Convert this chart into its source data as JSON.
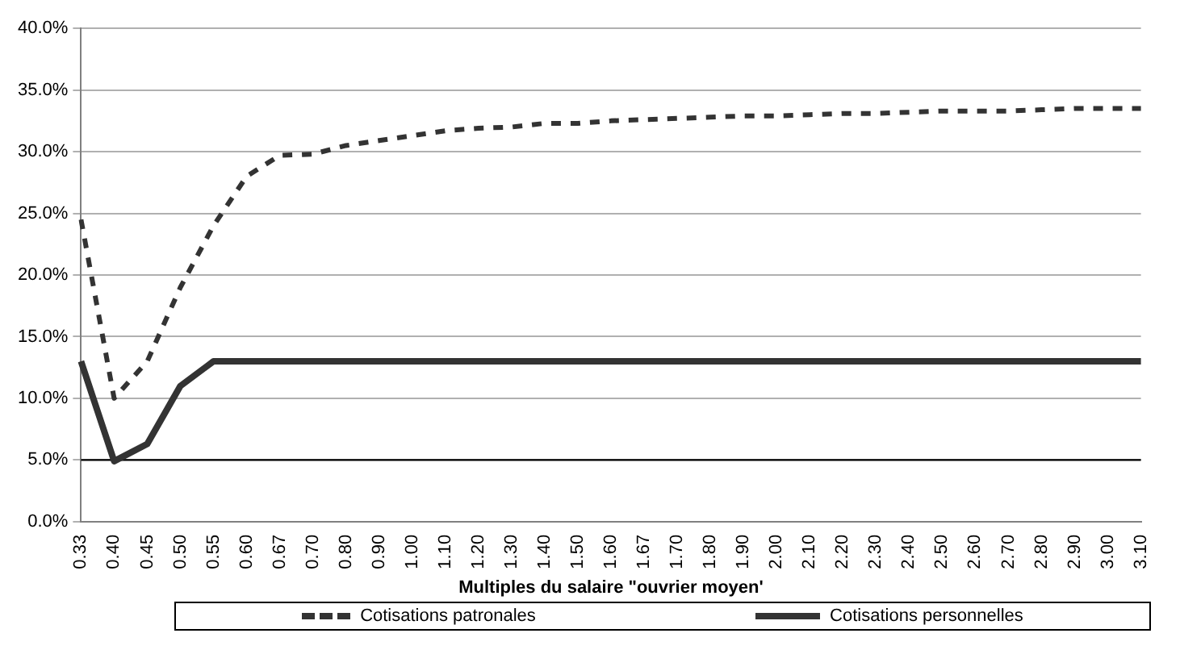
{
  "chart_data": {
    "type": "line",
    "xlabel": "Multiples du salaire \"ouvrier moyen'",
    "categories": [
      "0.33",
      "0.40",
      "0.45",
      "0.50",
      "0.55",
      "0.60",
      "0.67",
      "0.70",
      "0.80",
      "0.90",
      "1.00",
      "1.10",
      "1.20",
      "1.30",
      "1.40",
      "1.50",
      "1.60",
      "1.67",
      "1.70",
      "1.80",
      "1.90",
      "2.00",
      "2.10",
      "2.20",
      "2.30",
      "2.40",
      "2.50",
      "2.60",
      "2.70",
      "2.80",
      "2.90",
      "3.00",
      "3.10"
    ],
    "series": [
      {
        "name": "Cotisations patronales",
        "color": "#333333",
        "line_style": "dashed",
        "values": [
          24.5,
          10,
          13,
          19,
          24,
          28,
          29.7,
          29.8,
          30.5,
          30.9,
          31.3,
          31.7,
          31.9,
          32,
          32.3,
          32.3,
          32.5,
          32.6,
          32.7,
          32.8,
          32.9,
          32.9,
          33.0,
          33.1,
          33.1,
          33.2,
          33.3,
          33.3,
          33.3,
          33.4,
          33.5,
          33.5,
          33.5
        ]
      },
      {
        "name": "Cotisations personnelles",
        "color": "#333333",
        "line_style": "solid",
        "values": [
          13,
          4.9,
          6.3,
          11,
          13,
          13,
          13,
          13,
          13,
          13,
          13,
          13,
          13,
          13,
          13,
          13,
          13,
          13,
          13,
          13,
          13,
          13,
          13,
          13,
          13,
          13,
          13,
          13,
          13,
          13,
          13,
          13,
          13
        ]
      }
    ],
    "ylim": [
      0,
      40
    ],
    "yticks": [
      {
        "value": 0,
        "label": "0.0%"
      },
      {
        "value": 5,
        "label": "5.0%"
      },
      {
        "value": 10,
        "label": "10.0%"
      },
      {
        "value": 15,
        "label": "15.0%"
      },
      {
        "value": 20,
        "label": "20.0%"
      },
      {
        "value": 25,
        "label": "25.0%"
      },
      {
        "value": 30,
        "label": "30.0%"
      },
      {
        "value": 35,
        "label": "35.0%"
      },
      {
        "value": 40,
        "label": "40.0%"
      }
    ],
    "ref_lines": [
      {
        "axis": "y",
        "value": 5,
        "color": "#000000"
      }
    ],
    "grid": "y",
    "legend": "bottom",
    "marker": "none"
  }
}
